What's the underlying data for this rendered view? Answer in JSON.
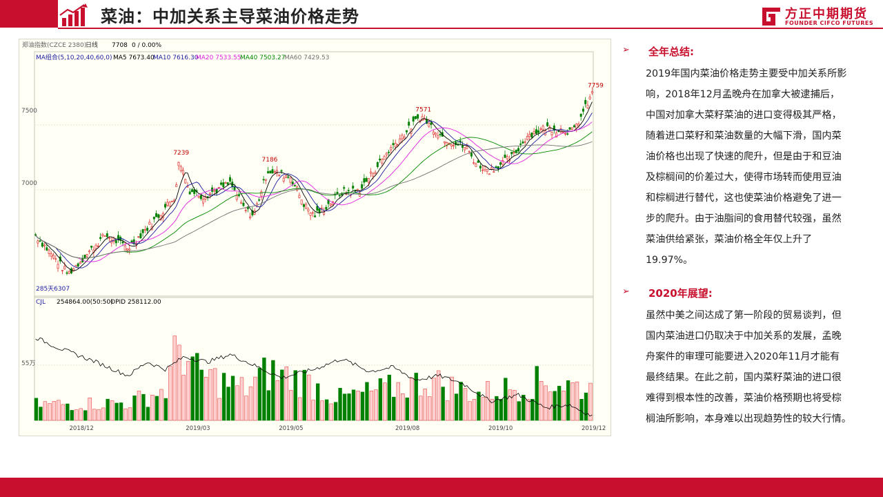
{
  "header": {
    "title": "菜油：中加关系主导菜油价格走势",
    "logo_name": "方正中期期货",
    "logo_en": "FOUNDER CIFCO FUTURES"
  },
  "colors": {
    "brand": "#c8102e",
    "up": "#e03030",
    "down": "#008000",
    "ma5": "#000000",
    "ma10": "#1a1aa0",
    "ma20": "#e020e0",
    "ma40": "#008800",
    "ma60": "#707070"
  },
  "chart_data": {
    "type": "candlestick",
    "instrument_label": "郑油指数(CZCE 2380)",
    "period": "日线",
    "last_value": "7708",
    "change": "0 / 0.00%",
    "ma_header": {
      "label": "MA组合(5,10,20,40,60,0)",
      "ma5": "MA5 7673.40",
      "ma10": "MA10 7616.30",
      "ma20": "MA20 7533.55",
      "ma40": "MA40 7503.27",
      "ma60": "MA60 7429.53"
    },
    "y_ticks": [
      "7500",
      "7000"
    ],
    "y_range": [
      6200,
      7980
    ],
    "x_ticks": [
      "2018/12",
      "2019/03",
      "2019/05",
      "2019/08",
      "2019/10",
      "2019/12"
    ],
    "annotations": [
      {
        "label": "7239",
        "month_pos": 3.1,
        "value": 7239
      },
      {
        "label": "7186",
        "month_pos": 5.0,
        "value": 7186
      },
      {
        "label": "7571",
        "month_pos": 8.3,
        "value": 7571
      },
      {
        "label": "7759",
        "month_pos": 12.0,
        "value": 7759
      }
    ],
    "low_label": "285天6307",
    "anchors": [
      [
        0,
        6650
      ],
      [
        0.7,
        6350
      ],
      [
        1.5,
        6650
      ],
      [
        2.0,
        6550
      ],
      [
        2.6,
        6780
      ],
      [
        3.0,
        6950
      ],
      [
        3.1,
        7239
      ],
      [
        3.3,
        7000
      ],
      [
        3.6,
        6950
      ],
      [
        4.2,
        7050
      ],
      [
        4.5,
        6850
      ],
      [
        4.7,
        6800
      ],
      [
        5.0,
        7150
      ],
      [
        5.5,
        7100
      ],
      [
        5.8,
        6880
      ],
      [
        6.0,
        6800
      ],
      [
        6.2,
        6850
      ],
      [
        6.6,
        6980
      ],
      [
        7.0,
        7000
      ],
      [
        7.6,
        7300
      ],
      [
        8.0,
        7450
      ],
      [
        8.3,
        7571
      ],
      [
        8.8,
        7400
      ],
      [
        9.3,
        7320
      ],
      [
        9.5,
        7200
      ],
      [
        9.8,
        7150
      ],
      [
        10.3,
        7260
      ],
      [
        10.6,
        7420
      ],
      [
        11.0,
        7480
      ],
      [
        11.6,
        7450
      ],
      [
        12.0,
        7740
      ]
    ],
    "volume": {
      "label": "CJL",
      "value_label": "254864.00(50:50)",
      "opid_label": "OPID 258112.00",
      "y_tick": "55万",
      "volume_envelope": [
        [
          0,
          0.18
        ],
        [
          2.0,
          0.2
        ],
        [
          2.8,
          0.35
        ],
        [
          3.1,
          0.9
        ],
        [
          3.4,
          0.55
        ],
        [
          4.5,
          0.35
        ],
        [
          5.0,
          0.55
        ],
        [
          5.8,
          0.45
        ],
        [
          6.5,
          0.25
        ],
        [
          7.5,
          0.35
        ],
        [
          8.5,
          0.45
        ],
        [
          9.5,
          0.3
        ],
        [
          11.0,
          0.45
        ],
        [
          12.0,
          0.35
        ]
      ],
      "oi_line": [
        [
          0,
          0.78
        ],
        [
          0.5,
          0.68
        ],
        [
          1.3,
          0.55
        ],
        [
          2.0,
          0.42
        ],
        [
          2.4,
          0.55
        ],
        [
          2.8,
          0.48
        ],
        [
          3.2,
          0.6
        ],
        [
          3.7,
          0.55
        ],
        [
          4.2,
          0.62
        ],
        [
          4.8,
          0.5
        ],
        [
          5.3,
          0.4
        ],
        [
          6.0,
          0.48
        ],
        [
          6.6,
          0.58
        ],
        [
          7.2,
          0.46
        ],
        [
          7.7,
          0.5
        ],
        [
          8.2,
          0.38
        ],
        [
          8.7,
          0.42
        ],
        [
          9.2,
          0.35
        ],
        [
          9.8,
          0.18
        ],
        [
          10.4,
          0.24
        ],
        [
          11.0,
          0.12
        ],
        [
          11.5,
          0.15
        ],
        [
          12.0,
          0.04
        ]
      ]
    }
  },
  "summary": {
    "bullet": "➢",
    "title": "全年总结:",
    "lines": [
      "2019年国内菜油价格走势主要受中加关系所影",
      "响，2018年12月孟晚舟在加拿大被逮捕后，",
      "中国对加拿大菜籽菜油的进口变得极其严格，",
      "随着进口菜籽和菜油数量的大幅下滑，国内菜",
      "油价格也出现了快速的爬升，但是由于和豆油",
      "及棕榈间的价差过大，使得市场转而使用豆油",
      "和棕榈进行替代，这也使菜油价格避免了进一",
      "步的爬升。由于油脂间的食用替代较强，虽然",
      "菜油供给紧张，菜油价格全年仅上升了",
      "19.97%。"
    ]
  },
  "outlook": {
    "bullet": "➢",
    "title": "2020年展望:",
    "lines": [
      "虽然中美之间达成了第一阶段的贸易谈判，但",
      "国内菜油进口仍取决于中加关系的发展，孟晚",
      "舟案件的审理可能要进入2020年11月才能有",
      "最终结果。在此之前，国内菜籽菜油的进口很",
      "难得到根本性的改善，菜油价格预期也将受棕",
      "榈油所影响，本身难以出现趋势性的较大行情。"
    ]
  }
}
